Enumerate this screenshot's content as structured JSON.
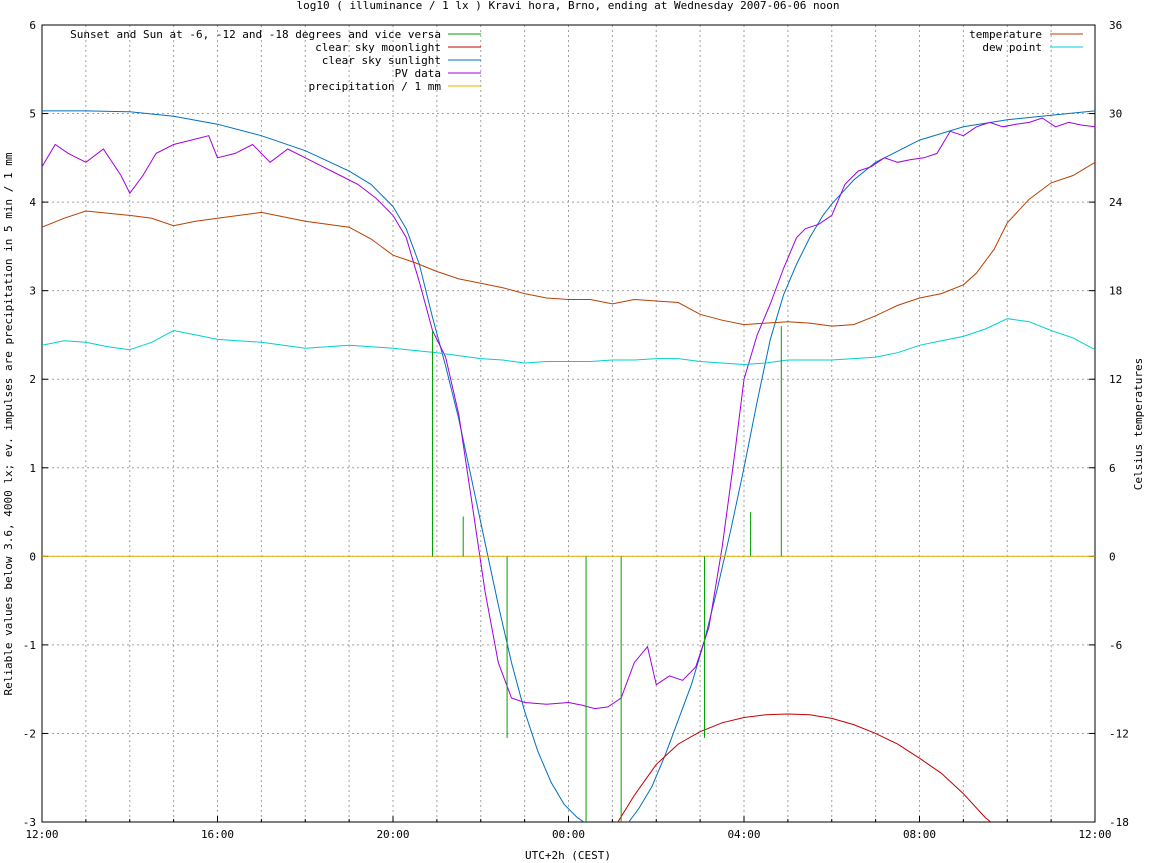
{
  "chart_data": {
    "type": "line",
    "title": "log10 ( illuminance / 1 lx ) Kravi hora, Brno, ending at Wednesday 2007-06-06 noon",
    "xlabel": "UTC+2h (CEST)",
    "ylabel": "Reliable values below 3.6, 4000 lx; ev. impulses are precipitation in 5 min / 1 mm",
    "y2label": "Celsius temperatures",
    "ylim": [
      -3,
      6
    ],
    "y2lim": [
      -18,
      36
    ],
    "xlim_hours": [
      0,
      24
    ],
    "grid": true,
    "legend_placement": "top-left and top-right",
    "x_ticks": [
      {
        "h": 0,
        "label": "12:00"
      },
      {
        "h": 1,
        "label": ""
      },
      {
        "h": 2,
        "label": ""
      },
      {
        "h": 3,
        "label": ""
      },
      {
        "h": 4,
        "label": "16:00"
      },
      {
        "h": 5,
        "label": ""
      },
      {
        "h": 6,
        "label": ""
      },
      {
        "h": 7,
        "label": ""
      },
      {
        "h": 8,
        "label": "20:00"
      },
      {
        "h": 9,
        "label": ""
      },
      {
        "h": 10,
        "label": ""
      },
      {
        "h": 11,
        "label": ""
      },
      {
        "h": 12,
        "label": "00:00"
      },
      {
        "h": 13,
        "label": ""
      },
      {
        "h": 14,
        "label": ""
      },
      {
        "h": 15,
        "label": ""
      },
      {
        "h": 16,
        "label": "04:00"
      },
      {
        "h": 17,
        "label": ""
      },
      {
        "h": 18,
        "label": ""
      },
      {
        "h": 19,
        "label": ""
      },
      {
        "h": 20,
        "label": "08:00"
      },
      {
        "h": 21,
        "label": ""
      },
      {
        "h": 22,
        "label": ""
      },
      {
        "h": 23,
        "label": ""
      },
      {
        "h": 24,
        "label": "12:00"
      }
    ],
    "y_ticks": [
      {
        "v": -3,
        "label": "-3"
      },
      {
        "v": -2,
        "label": "-2"
      },
      {
        "v": -1,
        "label": "-1"
      },
      {
        "v": 0,
        "label": "0"
      },
      {
        "v": 1,
        "label": "1"
      },
      {
        "v": 2,
        "label": "2"
      },
      {
        "v": 3,
        "label": "3"
      },
      {
        "v": 4,
        "label": "4"
      },
      {
        "v": 5,
        "label": "5"
      },
      {
        "v": 6,
        "label": "6"
      }
    ],
    "y2_ticks": [
      {
        "v": -18,
        "label": "-18"
      },
      {
        "v": -12,
        "label": "-12"
      },
      {
        "v": -6,
        "label": "-6"
      },
      {
        "v": 0,
        "label": "0"
      },
      {
        "v": 6,
        "label": "6"
      },
      {
        "v": 12,
        "label": "12"
      },
      {
        "v": 18,
        "label": "18"
      },
      {
        "v": 24,
        "label": "24"
      },
      {
        "v": 30,
        "label": "30"
      },
      {
        "v": 36,
        "label": "36"
      }
    ],
    "legend_left": [
      {
        "label": "Sunset and Sun at -6, -12 and -18 degrees and vice versa",
        "color": "#00a000"
      },
      {
        "label": "clear sky moonlight",
        "color": "#c00000"
      },
      {
        "label": "clear sky sunlight",
        "color": "#0070c0"
      },
      {
        "label": "PV data",
        "color": "#a000e0"
      },
      {
        "label": "precipitation / 1 mm",
        "color": "#e8b000"
      }
    ],
    "legend_right": [
      {
        "label": "temperature",
        "color": "#b84000"
      },
      {
        "label": "dew point",
        "color": "#00d0d0"
      }
    ],
    "events": [
      {
        "x": 8.9,
        "top": 2.55
      },
      {
        "x": 9.6,
        "top": 0.45
      },
      {
        "x": 10.6,
        "top": -2.05
      },
      {
        "x": 12.4,
        "top": -3
      },
      {
        "x": 13.2,
        "top": -3
      },
      {
        "x": 15.1,
        "top": -2.05
      },
      {
        "x": 16.15,
        "top": 0.5
      },
      {
        "x": 16.85,
        "top": 2.6
      }
    ],
    "series": [
      {
        "name": "clear sky sunlight",
        "axis": "y",
        "color": "#0070c0",
        "x": [
          0,
          1,
          2,
          3,
          4,
          5,
          6,
          7,
          7.5,
          8,
          8.3,
          8.6,
          8.9,
          9.2,
          9.5,
          9.8,
          10.1,
          10.4,
          10.7,
          11,
          11.3,
          11.6,
          11.9,
          12.2,
          12.5,
          13,
          13.3,
          13.6,
          13.9,
          14.2,
          14.5,
          14.8,
          15.1,
          15.4,
          15.7,
          16,
          16.3,
          16.6,
          16.9,
          17.2,
          17.5,
          17.8,
          18,
          18.5,
          19,
          20,
          21,
          22,
          23,
          24
        ],
        "y": [
          5.03,
          5.03,
          5.02,
          4.97,
          4.88,
          4.75,
          4.58,
          4.35,
          4.2,
          3.95,
          3.7,
          3.3,
          2.7,
          2.15,
          1.55,
          0.85,
          0.15,
          -0.55,
          -1.2,
          -1.75,
          -2.2,
          -2.55,
          -2.8,
          -2.95,
          -3.05,
          -3.1,
          -3.05,
          -2.85,
          -2.6,
          -2.25,
          -1.85,
          -1.45,
          -0.95,
          -0.35,
          0.3,
          1.0,
          1.75,
          2.45,
          2.95,
          3.3,
          3.6,
          3.85,
          3.98,
          4.25,
          4.45,
          4.7,
          4.85,
          4.93,
          4.98,
          5.03
        ]
      },
      {
        "name": "clear sky moonlight",
        "axis": "y",
        "color": "#c00000",
        "x": [
          13,
          13.5,
          14,
          14.5,
          15,
          15.5,
          16,
          16.5,
          17,
          17.5,
          18,
          18.5,
          19,
          19.5,
          20,
          20.5,
          21,
          21.5,
          22
        ],
        "y": [
          -3.1,
          -2.7,
          -2.35,
          -2.12,
          -1.98,
          -1.88,
          -1.82,
          -1.79,
          -1.78,
          -1.79,
          -1.83,
          -1.9,
          -2.0,
          -2.12,
          -2.28,
          -2.45,
          -2.68,
          -2.95,
          -3.15
        ]
      },
      {
        "name": "PV data",
        "axis": "y",
        "color": "#a000e0",
        "x": [
          0,
          0.3,
          0.6,
          1,
          1.4,
          1.8,
          2,
          2.3,
          2.6,
          3,
          3.4,
          3.8,
          4,
          4.4,
          4.8,
          5.2,
          5.6,
          6,
          6.4,
          6.8,
          7.2,
          7.6,
          8,
          8.3,
          8.6,
          8.9,
          9.2,
          9.5,
          9.8,
          10.1,
          10.4,
          10.7,
          11,
          11.5,
          12,
          12.3,
          12.6,
          12.9,
          13.2,
          13.5,
          13.8,
          14,
          14.3,
          14.6,
          14.9,
          15.2,
          15.5,
          15.8,
          16,
          16.3,
          16.6,
          16.9,
          17.2,
          17.4,
          17.7,
          18,
          18.3,
          18.6,
          18.9,
          19.2,
          19.5,
          19.8,
          20.1,
          20.4,
          20.7,
          21,
          21.3,
          21.6,
          21.9,
          22.2,
          22.5,
          22.8,
          23.1,
          23.4,
          23.7,
          24
        ],
        "y": [
          4.4,
          4.65,
          4.55,
          4.45,
          4.6,
          4.3,
          4.1,
          4.3,
          4.55,
          4.65,
          4.7,
          4.75,
          4.5,
          4.55,
          4.65,
          4.45,
          4.6,
          4.5,
          4.4,
          4.3,
          4.2,
          4.05,
          3.85,
          3.6,
          3.1,
          2.55,
          2.25,
          1.6,
          0.6,
          -0.4,
          -1.2,
          -1.6,
          -1.65,
          -1.67,
          -1.65,
          -1.68,
          -1.72,
          -1.7,
          -1.6,
          -1.2,
          -1.02,
          -1.45,
          -1.35,
          -1.4,
          -1.25,
          -0.8,
          0.1,
          1.2,
          2.0,
          2.5,
          2.85,
          3.25,
          3.6,
          3.7,
          3.75,
          3.85,
          4.2,
          4.35,
          4.4,
          4.5,
          4.45,
          4.48,
          4.5,
          4.55,
          4.8,
          4.75,
          4.85,
          4.9,
          4.85,
          4.88,
          4.9,
          4.95,
          4.85,
          4.9,
          4.87,
          4.85
        ]
      },
      {
        "name": "temperature",
        "axis": "y2",
        "color": "#b84000",
        "x": [
          0,
          0.5,
          1,
          2,
          2.5,
          3,
          3.5,
          4,
          5,
          6,
          7,
          7.5,
          8,
          8.5,
          9,
          9.5,
          10,
          10.5,
          11,
          11.5,
          12,
          12.5,
          13,
          13.5,
          14,
          14.5,
          15,
          15.5,
          16,
          16.5,
          17,
          17.5,
          18,
          18.5,
          19,
          19.5,
          20,
          20.5,
          21,
          21.3,
          21.7,
          22,
          22.5,
          23,
          23.5,
          24
        ],
        "y": [
          22.3,
          22.9,
          23.4,
          23.1,
          22.9,
          22.4,
          22.7,
          22.9,
          23.3,
          22.7,
          22.3,
          21.5,
          20.4,
          19.9,
          19.3,
          18.8,
          18.5,
          18.2,
          17.8,
          17.5,
          17.4,
          17.4,
          17.1,
          17.4,
          17.3,
          17.2,
          16.4,
          16.0,
          15.7,
          15.8,
          15.9,
          15.8,
          15.6,
          15.7,
          16.3,
          17.0,
          17.5,
          17.8,
          18.4,
          19.2,
          20.8,
          22.6,
          24.2,
          25.3,
          25.8,
          26.7
        ]
      },
      {
        "name": "dew point",
        "axis": "y2",
        "color": "#00d0d0",
        "x": [
          0,
          0.5,
          1,
          1.5,
          2,
          2.5,
          3,
          3.5,
          4,
          5,
          6,
          7,
          8,
          9,
          9.5,
          10,
          10.5,
          11,
          11.5,
          12,
          12.5,
          13,
          13.5,
          14,
          14.5,
          15,
          15.5,
          16,
          16.5,
          17,
          17.5,
          18,
          18.5,
          19,
          19.5,
          20,
          20.5,
          21,
          21.5,
          22,
          22.5,
          23,
          23.5,
          24
        ],
        "y": [
          14.3,
          14.6,
          14.5,
          14.2,
          14.0,
          14.5,
          15.3,
          15.0,
          14.7,
          14.5,
          14.1,
          14.3,
          14.1,
          13.8,
          13.6,
          13.4,
          13.3,
          13.1,
          13.2,
          13.2,
          13.2,
          13.3,
          13.3,
          13.4,
          13.4,
          13.2,
          13.1,
          13.0,
          13.1,
          13.3,
          13.3,
          13.3,
          13.4,
          13.5,
          13.8,
          14.3,
          14.6,
          14.9,
          15.4,
          16.1,
          15.9,
          15.3,
          14.8,
          14.0
        ]
      },
      {
        "name": "precipitation / 1 mm",
        "axis": "y",
        "color": "#e8b000",
        "x": [
          0,
          24
        ],
        "y": [
          0,
          0
        ]
      }
    ]
  }
}
